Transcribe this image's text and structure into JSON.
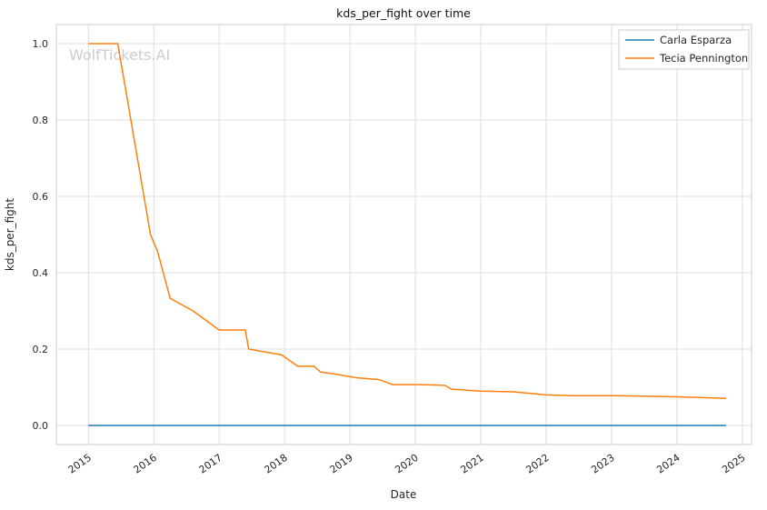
{
  "watermark": "WolfTickets.AI",
  "chart_data": {
    "type": "line",
    "title": "kds_per_fight over time",
    "xlabel": "Date",
    "ylabel": "kds_per_fight",
    "xlim": [
      2014.51,
      2025.14
    ],
    "ylim": [
      -0.05,
      1.05
    ],
    "grid": true,
    "legend_position": "upper right",
    "xticks": [
      2015,
      2016,
      2017,
      2018,
      2019,
      2020,
      2021,
      2022,
      2023,
      2024,
      2025
    ],
    "xtick_labels": [
      "2015",
      "2016",
      "2017",
      "2018",
      "2019",
      "2020",
      "2021",
      "2022",
      "2023",
      "2024",
      "2025"
    ],
    "yticks": [
      0.0,
      0.2,
      0.4,
      0.6,
      0.8,
      1.0
    ],
    "ytick_labels": [
      "0.0",
      "0.2",
      "0.4",
      "0.6",
      "0.8",
      "1.0"
    ],
    "series": [
      {
        "name": "Carla Esparza",
        "color": "#1f77b4",
        "x": [
          2015.0,
          2024.75
        ],
        "y": [
          0.0,
          0.0
        ]
      },
      {
        "name": "Tecia Pennington",
        "color": "#ff7f0e",
        "x": [
          2015.0,
          2015.45,
          2015.95,
          2016.06,
          2016.25,
          2016.6,
          2017.0,
          2017.4,
          2017.45,
          2017.95,
          2018.2,
          2018.45,
          2018.55,
          2018.75,
          2019.1,
          2019.45,
          2019.65,
          2020.1,
          2020.45,
          2020.55,
          2021.0,
          2021.5,
          2022.0,
          2022.4,
          2023.0,
          2023.5,
          2024.0,
          2024.75
        ],
        "y": [
          1.0,
          1.0,
          0.5,
          0.455,
          0.333,
          0.3,
          0.25,
          0.25,
          0.2,
          0.185,
          0.155,
          0.155,
          0.14,
          0.135,
          0.125,
          0.12,
          0.107,
          0.107,
          0.105,
          0.095,
          0.09,
          0.088,
          0.08,
          0.078,
          0.078,
          0.077,
          0.075,
          0.071
        ]
      }
    ]
  }
}
